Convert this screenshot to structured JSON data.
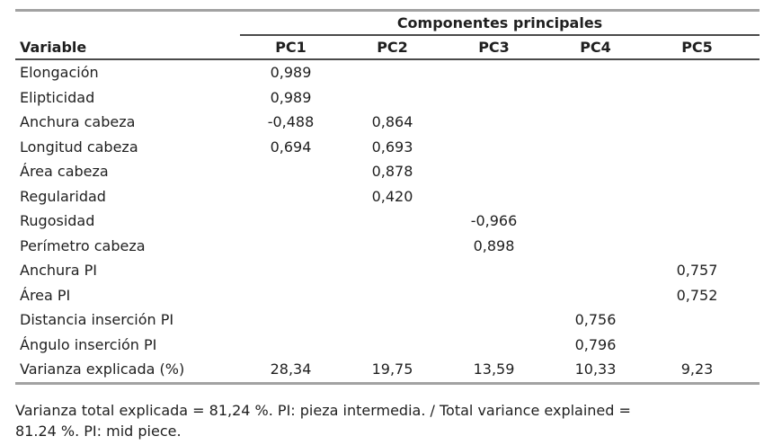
{
  "colors": {
    "background": "#ffffff",
    "text": "#1f1f1f",
    "rule_light": "#a2a2a2",
    "rule_dark": "#4a4a4a"
  },
  "table": {
    "group_header": "Componentes principales",
    "columns": [
      "Variable",
      "PC1",
      "PC2",
      "PC3",
      "PC4",
      "PC5"
    ],
    "rows": [
      {
        "variable": "Elongación",
        "pc1": "0,989",
        "pc2": "",
        "pc3": "",
        "pc4": "",
        "pc5": ""
      },
      {
        "variable": "Elipticidad",
        "pc1": "0,989",
        "pc2": "",
        "pc3": "",
        "pc4": "",
        "pc5": ""
      },
      {
        "variable": "Anchura cabeza",
        "pc1": "-0,488",
        "pc2": "0,864",
        "pc3": "",
        "pc4": "",
        "pc5": ""
      },
      {
        "variable": "Longitud cabeza",
        "pc1": "0,694",
        "pc2": "0,693",
        "pc3": "",
        "pc4": "",
        "pc5": ""
      },
      {
        "variable": "Área cabeza",
        "pc1": "",
        "pc2": "0,878",
        "pc3": "",
        "pc4": "",
        "pc5": ""
      },
      {
        "variable": "Regularidad",
        "pc1": "",
        "pc2": "0,420",
        "pc3": "",
        "pc4": "",
        "pc5": ""
      },
      {
        "variable": "Rugosidad",
        "pc1": "",
        "pc2": "",
        "pc3": "-0,966",
        "pc4": "",
        "pc5": ""
      },
      {
        "variable": "Perímetro cabeza",
        "pc1": "",
        "pc2": "",
        "pc3": "0,898",
        "pc4": "",
        "pc5": ""
      },
      {
        "variable": "Anchura PI",
        "pc1": "",
        "pc2": "",
        "pc3": "",
        "pc4": "",
        "pc5": "0,757"
      },
      {
        "variable": "Área PI",
        "pc1": "",
        "pc2": "",
        "pc3": "",
        "pc4": "",
        "pc5": "0,752"
      },
      {
        "variable": "Distancia inserción PI",
        "pc1": "",
        "pc2": "",
        "pc3": "",
        "pc4": "0,756",
        "pc5": ""
      },
      {
        "variable": "Ángulo inserción PI",
        "pc1": "",
        "pc2": "",
        "pc3": "",
        "pc4": "0,796",
        "pc5": ""
      },
      {
        "variable": "Varianza explicada (%)",
        "pc1": "28,34",
        "pc2": "19,75",
        "pc3": "13,59",
        "pc4": "10,33",
        "pc5": "9,23"
      }
    ]
  },
  "footnote": {
    "line1": "Varianza total explicada = 81,24 %. PI: pieza intermedia. /  Total variance explained =",
    "line2": "81.24 %. PI: mid piece."
  }
}
